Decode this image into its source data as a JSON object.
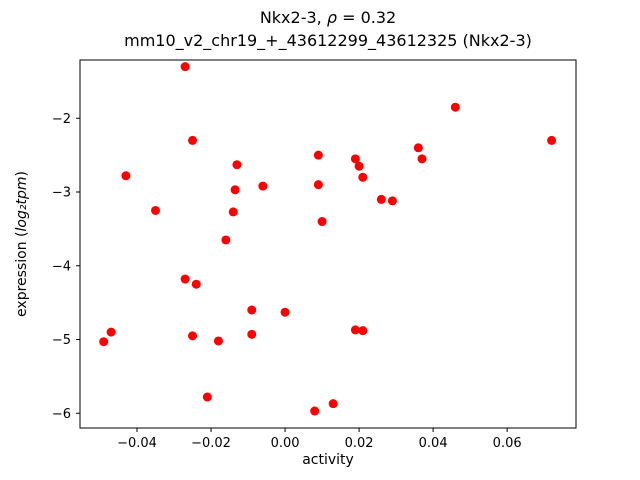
{
  "title": {
    "gene_part": "Nkx2-3, ",
    "rho_symbol": "ρ",
    "rho_value_part": " = 0.32",
    "line2": "mm10_v2_chr19_+_43612299_43612325 (Nkx2-3)"
  },
  "axes": {
    "xlabel": "activity",
    "ylabel_prefix": "expression (",
    "ylabel_math": "log₂tpm",
    "ylabel_suffix": ")"
  },
  "chart_data": {
    "type": "scatter",
    "title": "Nkx2-3, ρ = 0.32",
    "subtitle": "mm10_v2_chr19_+_43612299_43612325 (Nkx2-3)",
    "xlabel": "activity",
    "ylabel": "expression (log₂tpm)",
    "correlation_rho": 0.32,
    "marker_color": "#ff0000",
    "marker_radius": 4.5,
    "grid": false,
    "legend": "none",
    "xlim": [
      -0.0554,
      0.0786
    ],
    "ylim": [
      -6.2,
      -1.21
    ],
    "x_ticks": [
      -0.04,
      -0.02,
      0.0,
      0.02,
      0.04,
      0.06
    ],
    "x_tick_labels": [
      "−0.04",
      "−0.02",
      "0.00",
      "0.02",
      "0.04",
      "0.06"
    ],
    "y_ticks": [
      -2,
      -3,
      -4,
      -5,
      -6
    ],
    "y_tick_labels": [
      "−2",
      "−3",
      "−4",
      "−5",
      "−6"
    ],
    "x": [
      -0.027,
      0.046,
      0.072,
      -0.025,
      0.036,
      0.009,
      0.019,
      0.037,
      -0.013,
      0.02,
      -0.043,
      0.021,
      -0.006,
      0.009,
      -0.0135,
      0.026,
      0.029,
      -0.014,
      -0.035,
      0.01,
      -0.016,
      -0.027,
      -0.024,
      -0.009,
      0.0,
      -0.047,
      -0.025,
      -0.009,
      0.019,
      0.021,
      -0.049,
      -0.018,
      -0.021,
      0.013,
      0.008
    ],
    "y": [
      -1.3,
      -1.85,
      -2.3,
      -2.3,
      -2.4,
      -2.5,
      -2.55,
      -2.55,
      -2.63,
      -2.65,
      -2.78,
      -2.8,
      -2.92,
      -2.9,
      -2.97,
      -3.1,
      -3.12,
      -3.27,
      -3.25,
      -3.4,
      -3.65,
      -4.18,
      -4.25,
      -4.6,
      -4.63,
      -4.9,
      -4.95,
      -4.93,
      -4.87,
      -4.88,
      -5.03,
      -5.02,
      -5.78,
      -5.87,
      -5.97
    ]
  }
}
